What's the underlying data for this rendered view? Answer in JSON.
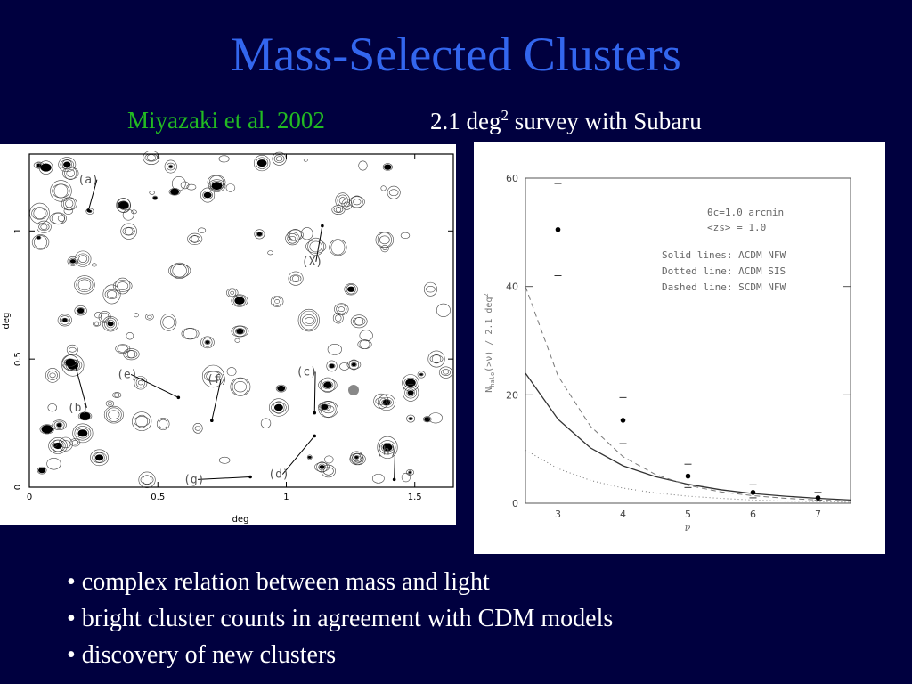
{
  "slide": {
    "title": "Mass-Selected Clusters",
    "citation": "Miyazaki et al. 2002",
    "survey_prefix": "2.1 deg",
    "survey_sup": "2",
    "survey_suffix": " survey with Subaru",
    "bullets": [
      "• complex relation between mass and light",
      "• bright cluster counts in agreement with CDM models",
      "• discovery of new clusters"
    ]
  },
  "map": {
    "xlabel": "deg",
    "ylabel": "deg",
    "xticks": [
      "0",
      "0.5",
      "1",
      "1.5"
    ],
    "yticks": [
      "0",
      "0.5",
      "1"
    ],
    "xtick_values": [
      0,
      0.5,
      1,
      1.5
    ],
    "ytick_values": [
      0,
      0.5,
      1
    ],
    "xlim": [
      0,
      1.65
    ],
    "ylim": [
      0,
      1.3
    ],
    "labels": [
      {
        "text": "(a)",
        "x": 0.27,
        "y": 1.2,
        "tx": 0.23,
        "ty": 1.08
      },
      {
        "text": "(X)",
        "x": 1.06,
        "y": 0.88,
        "tx": 1.14,
        "ty": 1.02
      },
      {
        "text": "(e)",
        "x": 0.34,
        "y": 0.44,
        "tx": 0.58,
        "ty": 0.35
      },
      {
        "text": "(f)",
        "x": 0.69,
        "y": 0.42,
        "tx": 0.71,
        "ty": 0.26
      },
      {
        "text": "(c)",
        "x": 1.12,
        "y": 0.45,
        "tx": 1.11,
        "ty": 0.29
      },
      {
        "text": "(b)",
        "x": 0.23,
        "y": 0.31,
        "tx": 0.18,
        "ty": 0.47
      },
      {
        "text": "(h)",
        "x": 1.43,
        "y": 0.14,
        "tx": 1.42,
        "ty": 0.03
      },
      {
        "text": "(d)",
        "x": 0.93,
        "y": 0.05,
        "tx": 1.11,
        "ty": 0.2
      },
      {
        "text": "(g)",
        "x": 0.6,
        "y": 0.03,
        "tx": 0.86,
        "ty": 0.04
      }
    ]
  },
  "chart_data": {
    "type": "line",
    "xlabel": "ν",
    "ylabel_main": "N",
    "ylabel_sub": "halo",
    "ylabel_rest": "(>ν) / 2.1 deg",
    "ylabel_sup": "2",
    "xlim": [
      2.5,
      7.5
    ],
    "ylim": [
      0,
      60
    ],
    "xticks": [
      "3",
      "4",
      "5",
      "6",
      "7"
    ],
    "xtick_values": [
      3,
      4,
      5,
      6,
      7
    ],
    "yticks": [
      "0",
      "20",
      "40",
      "60"
    ],
    "ytick_values": [
      0,
      20,
      40,
      60
    ],
    "legend_line1": "θc=1.0 arcmin",
    "legend_line2": "<zs> = 1.0",
    "legend_line3": "Solid lines: ΛCDM NFW",
    "legend_line4": "Dotted line: ΛCDM SIS",
    "legend_line5": "Dashed line: SCDM NFW",
    "points": [
      {
        "x": 3,
        "y": 50.5,
        "ylo": 42,
        "yhi": 59
      },
      {
        "x": 4,
        "y": 15.3,
        "ylo": 11,
        "yhi": 19.5
      },
      {
        "x": 5,
        "y": 5.0,
        "ylo": 2.9,
        "yhi": 7.2
      },
      {
        "x": 6,
        "y": 2.0,
        "ylo": 1.0,
        "yhi": 3.4
      },
      {
        "x": 7,
        "y": 1.0,
        "ylo": 0.5,
        "yhi": 2.0
      }
    ],
    "series": [
      {
        "name": "Solid lines: ΛCDM NFW",
        "style": "solid",
        "x": [
          2.5,
          3,
          3.5,
          4,
          4.5,
          5,
          5.5,
          6,
          6.5,
          7,
          7.5
        ],
        "y": [
          24,
          15.5,
          10.2,
          6.9,
          4.9,
          3.5,
          2.5,
          1.8,
          1.3,
          0.9,
          0.6
        ]
      },
      {
        "name": "Dotted line: ΛCDM SIS",
        "style": "dotted",
        "x": [
          2.5,
          3,
          3.5,
          4,
          4.5,
          5,
          5.5,
          6,
          6.5,
          7,
          7.5
        ],
        "y": [
          9.8,
          6.4,
          4.2,
          2.8,
          1.9,
          1.3,
          0.9,
          0.6,
          0.4,
          0.3,
          0.2
        ]
      },
      {
        "name": "Dashed line: SCDM NFW",
        "style": "dashed",
        "x": [
          2.5,
          3,
          3.5,
          4,
          4.5,
          5,
          5.5,
          6,
          6.5,
          7,
          7.5
        ],
        "y": [
          40,
          23.5,
          14.2,
          8.6,
          5.3,
          3.3,
          2.1,
          1.4,
          0.9,
          0.6,
          0.4
        ]
      }
    ]
  }
}
